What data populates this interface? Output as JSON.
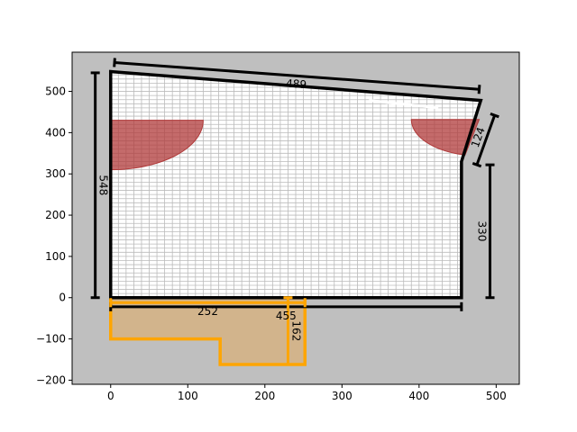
{
  "chart_data": {
    "type": "diagram",
    "xlim": [
      -50,
      530
    ],
    "ylim": [
      -210,
      595
    ],
    "xticks": [
      0,
      100,
      200,
      300,
      400,
      500
    ],
    "yticks": [
      -200,
      -100,
      0,
      100,
      200,
      300,
      400,
      500
    ],
    "colors": {
      "background": "#bfbfbf",
      "grid_fill": "#ffffff",
      "grid_line": "#bbbbbb",
      "wall": "#000000",
      "door_swing": "#b03a3a",
      "annex_fill": "#d2b48c",
      "annex_stroke": "#ffa500",
      "window": "#ffffff"
    },
    "room_outline": [
      [
        0,
        548
      ],
      [
        480,
        478
      ],
      [
        455,
        330
      ],
      [
        455,
        0
      ],
      [
        0,
        0
      ]
    ],
    "window_segment": [
      [
        335,
        478
      ],
      [
        425,
        460
      ]
    ],
    "door_swings": [
      {
        "hinge": [
          0,
          430
        ],
        "radius": 120,
        "start_deg": -90,
        "end_deg": 0
      },
      {
        "hinge": [
          478,
          432
        ],
        "radius": 88,
        "start_deg": 180,
        "end_deg": 258
      }
    ],
    "annex_outline": [
      [
        0,
        0
      ],
      [
        252,
        0
      ],
      [
        252,
        -162
      ],
      [
        142,
        -162
      ],
      [
        142,
        -100
      ],
      [
        0,
        -100
      ]
    ],
    "dimensions": [
      {
        "label": "489",
        "value": 489,
        "from": [
          5,
          570
        ],
        "to": [
          478,
          505
        ],
        "rotate": true
      },
      {
        "label": "124",
        "value": 124,
        "from": [
          498,
          442
        ],
        "to": [
          475,
          322
        ],
        "rotate": true
      },
      {
        "label": "548",
        "value": 548,
        "from": [
          -20,
          545
        ],
        "to": [
          -20,
          0
        ],
        "rotate": true
      },
      {
        "label": "330",
        "value": 330,
        "from": [
          492,
          322
        ],
        "to": [
          492,
          0
        ],
        "rotate": true
      },
      {
        "label": "455",
        "value": 455,
        "from": [
          0,
          -22
        ],
        "to": [
          455,
          -22
        ],
        "rotate": false
      }
    ],
    "annex_dimensions": [
      {
        "label": "252",
        "value": 252,
        "from": [
          0,
          -12
        ],
        "to": [
          252,
          -12
        ],
        "rotate": false
      },
      {
        "label": "162",
        "value": 162,
        "from": [
          230,
          0
        ],
        "to": [
          230,
          -162
        ],
        "rotate": true
      }
    ]
  }
}
